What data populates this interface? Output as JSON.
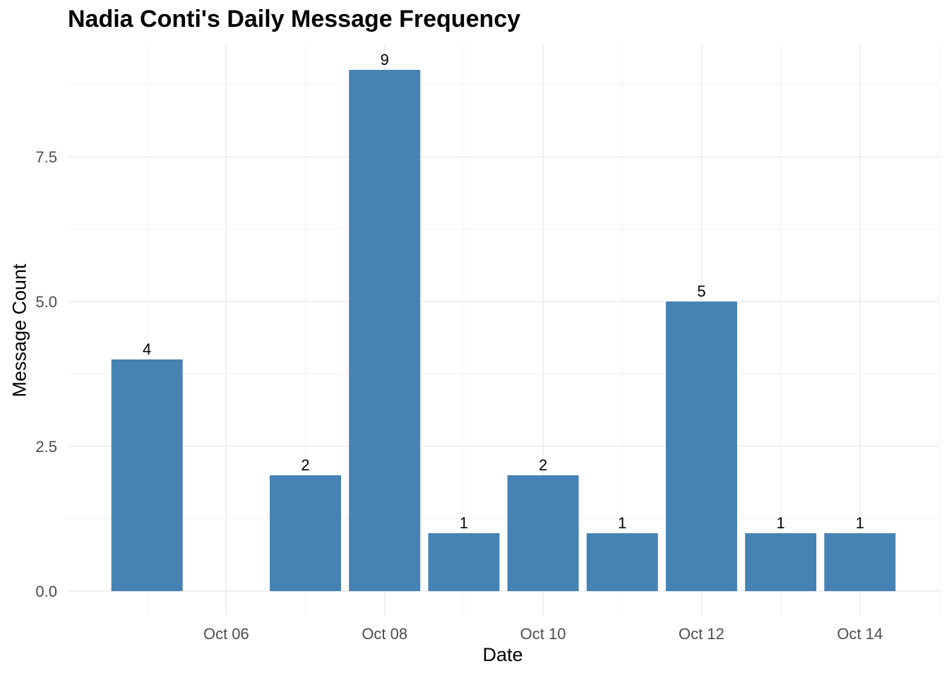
{
  "chart_data": {
    "type": "bar",
    "title": "Nadia Conti's Daily Message Frequency",
    "xlabel": "Date",
    "ylabel": "Message Count",
    "categories": [
      "2024-10-05",
      "2024-10-07",
      "2024-10-08",
      "2024-10-09",
      "2024-10-10",
      "2024-10-11",
      "2024-10-12",
      "2024-10-13",
      "2024-10-14"
    ],
    "values": [
      4,
      2,
      9,
      1,
      2,
      1,
      5,
      1,
      1
    ],
    "data_labels": [
      "4",
      "2",
      "9",
      "1",
      "2",
      "1",
      "5",
      "1",
      "1"
    ],
    "xlim": [
      "2024-10-04",
      "2024-10-15"
    ],
    "ylim": [
      0,
      9.45
    ],
    "x_ticks": [
      {
        "date": "2024-10-06",
        "label": "Oct 06"
      },
      {
        "date": "2024-10-08",
        "label": "Oct 08"
      },
      {
        "date": "2024-10-10",
        "label": "Oct 10"
      },
      {
        "date": "2024-10-12",
        "label": "Oct 12"
      },
      {
        "date": "2024-10-14",
        "label": "Oct 14"
      }
    ],
    "y_ticks": [
      {
        "value": 0,
        "label": "0.0"
      },
      {
        "value": 2.5,
        "label": "2.5"
      },
      {
        "value": 5,
        "label": "5.0"
      },
      {
        "value": 7.5,
        "label": "7.5"
      }
    ],
    "grid": true,
    "legend": "none",
    "bar_color": "#4682B4"
  }
}
